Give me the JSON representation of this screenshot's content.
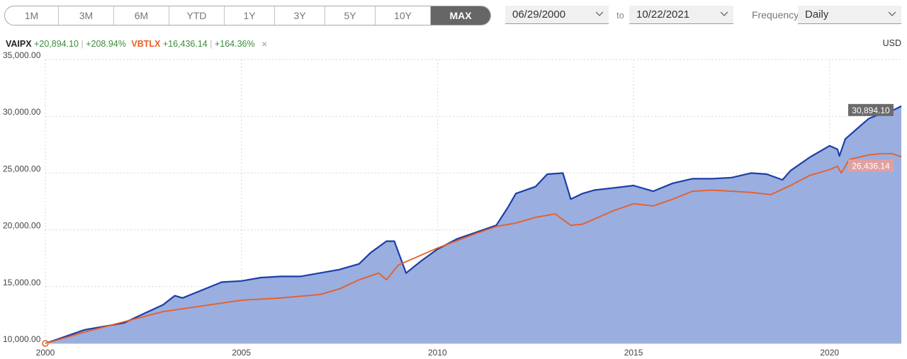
{
  "toolbar": {
    "ranges": [
      "1M",
      "3M",
      "6M",
      "YTD",
      "1Y",
      "3Y",
      "5Y",
      "10Y",
      "MAX"
    ],
    "active_range": "MAX",
    "start_date": "06/29/2000",
    "to_label": "to",
    "end_date": "10/22/2021",
    "frequency_label": "Frequency",
    "frequency_value": "Daily"
  },
  "legend": {
    "series1_ticker": "VAIPX",
    "series1_change": "+20,894.10",
    "series1_pct": "+208.94%",
    "series2_ticker": "VBTLX",
    "series2_change": "+16,436.14",
    "series2_pct": "+164.36%",
    "separator": "|",
    "close_glyph": "×",
    "currency": "USD"
  },
  "colors": {
    "series1": "#1a3fa8",
    "series1_fill": "#9aaedf",
    "series2": "#e85d24",
    "series1_label_bg": "#6b6b6b",
    "series2_label_bg": "#e0a0a0",
    "grid": "#d6d6d6"
  },
  "chart_data": {
    "type": "line",
    "xlim": [
      2000,
      2021.83
    ],
    "ylim": [
      10000,
      35000
    ],
    "x_ticks": [
      2000,
      2005,
      2010,
      2015,
      2020
    ],
    "x_tick_labels": [
      "2000",
      "2005",
      "2010",
      "2015",
      "2020"
    ],
    "y_ticks": [
      10000,
      15000,
      20000,
      25000,
      30000,
      35000
    ],
    "y_tick_labels": [
      "10,000.00",
      "15,000.00",
      "20,000.00",
      "25,000.00",
      "30,000.00",
      "35,000.00"
    ],
    "grid": true,
    "series": [
      {
        "name": "VAIPX",
        "fill": true,
        "last_label": "30,894.10",
        "x": [
          2000.0,
          2000.5,
          2001.0,
          2001.5,
          2002.0,
          2002.5,
          2003.0,
          2003.3,
          2003.5,
          2004.0,
          2004.5,
          2005.0,
          2005.5,
          2006.0,
          2006.5,
          2007.0,
          2007.5,
          2008.0,
          2008.3,
          2008.7,
          2008.9,
          2009.2,
          2009.6,
          2010.0,
          2010.5,
          2011.0,
          2011.5,
          2011.8,
          2012.0,
          2012.5,
          2012.8,
          2013.2,
          2013.4,
          2013.7,
          2014.0,
          2014.5,
          2015.0,
          2015.5,
          2016.0,
          2016.5,
          2017.0,
          2017.5,
          2018.0,
          2018.4,
          2018.8,
          2019.0,
          2019.5,
          2020.0,
          2020.2,
          2020.25,
          2020.4,
          2020.8,
          2021.0,
          2021.3,
          2021.6,
          2021.83
        ],
        "y": [
          10000,
          10600,
          11200,
          11500,
          11800,
          12600,
          13400,
          14200,
          14000,
          14700,
          15400,
          15500,
          15800,
          15900,
          15900,
          16200,
          16500,
          17000,
          18000,
          19000,
          19000,
          16200,
          17300,
          18300,
          19200,
          19800,
          20400,
          22000,
          23200,
          23800,
          24900,
          25000,
          22700,
          23200,
          23500,
          23700,
          23900,
          23400,
          24100,
          24500,
          24500,
          24600,
          25000,
          24900,
          24400,
          25200,
          26400,
          27400,
          27100,
          26500,
          28000,
          29200,
          29800,
          30200,
          30500,
          30894
        ]
      },
      {
        "name": "VBTLX",
        "fill": false,
        "last_label": "26,436.14",
        "x": [
          2000.0,
          2000.5,
          2001.0,
          2002.0,
          2003.0,
          2004.0,
          2005.0,
          2006.0,
          2007.0,
          2007.5,
          2008.0,
          2008.5,
          2008.7,
          2009.0,
          2010.0,
          2011.0,
          2011.5,
          2012.0,
          2012.5,
          2013.0,
          2013.4,
          2013.7,
          2014.5,
          2015.0,
          2015.5,
          2016.0,
          2016.5,
          2017.0,
          2018.0,
          2018.5,
          2019.0,
          2019.5,
          2020.0,
          2020.2,
          2020.3,
          2020.5,
          2021.0,
          2021.3,
          2021.6,
          2021.83
        ],
        "y": [
          10000,
          10500,
          11000,
          11900,
          12800,
          13300,
          13800,
          14000,
          14300,
          14800,
          15600,
          16200,
          15600,
          16900,
          18400,
          19700,
          20300,
          20600,
          21100,
          21400,
          20400,
          20500,
          21700,
          22300,
          22100,
          22700,
          23400,
          23500,
          23300,
          23100,
          23900,
          24800,
          25300,
          25600,
          25000,
          26200,
          26600,
          26700,
          26700,
          26436
        ]
      }
    ]
  }
}
